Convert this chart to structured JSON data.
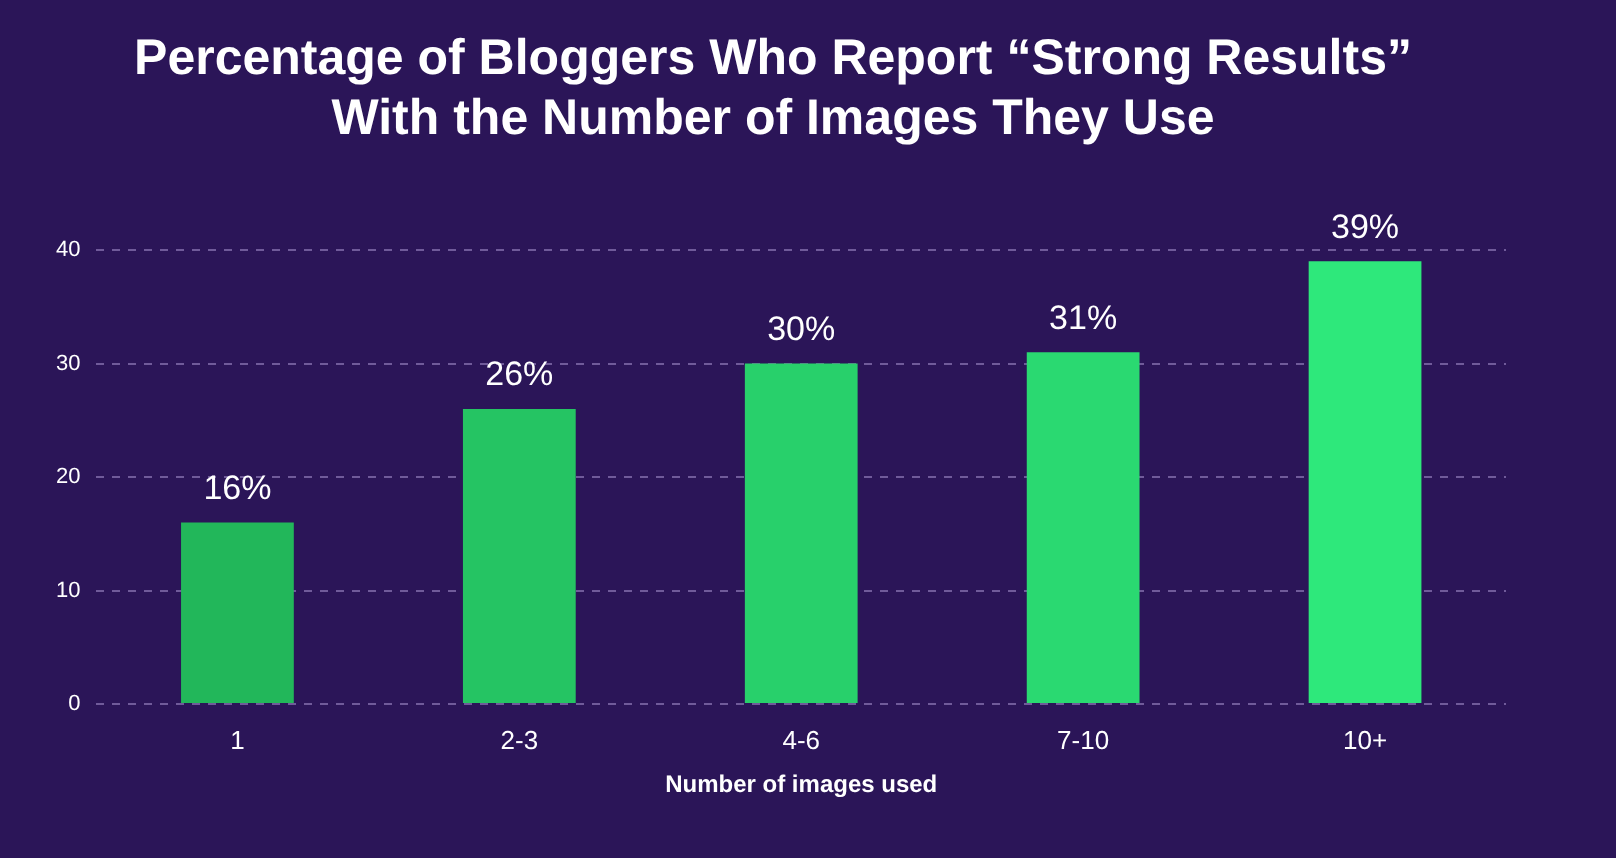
{
  "chart_data": {
    "type": "bar",
    "title": "Percentage of Bloggers Who Report “Strong Results”\nWith the Number of Images They Use",
    "xlabel": "Number of images used",
    "categories": [
      "1",
      "2-3",
      "4-6",
      "7-10",
      "10+"
    ],
    "values": [
      16,
      26,
      30,
      31,
      39
    ],
    "colors": [
      "#22b75a",
      "#25c463",
      "#28d06b",
      "#2ad971",
      "#2ee87b"
    ],
    "value_labels": [
      "16%",
      "26%",
      "30%",
      "31%",
      "39%"
    ],
    "ylim": [
      0,
      40
    ],
    "yticks": [
      0,
      10,
      20,
      30,
      40
    ],
    "grid": "y",
    "legend": false
  }
}
